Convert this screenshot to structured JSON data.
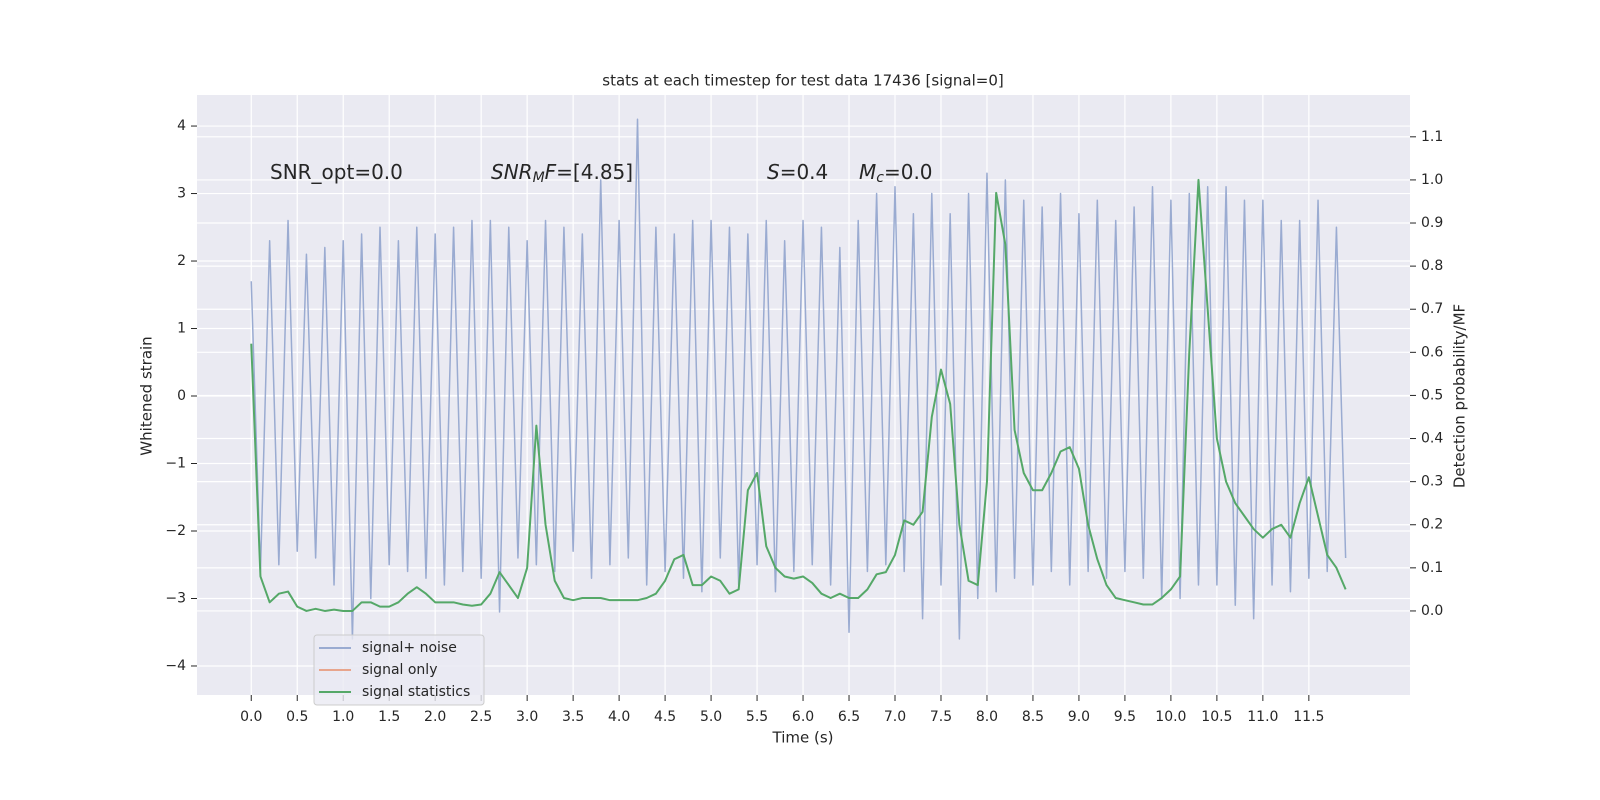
{
  "chart_data": {
    "type": "line",
    "title": "stats at each timestep for test data 17436 [signal=0]",
    "xlabel": "Time (s)",
    "ylabel": "Whitened strain",
    "y2label": "Detection probability/MF",
    "annotations": [
      {
        "parts": [
          {
            "text": "SNR_opt=0.0",
            "style": "normal"
          }
        ]
      },
      {
        "parts": [
          {
            "text": "SNR",
            "style": "italic"
          },
          {
            "text": "M",
            "style": "sub"
          },
          {
            "text": "F",
            "style": "italic"
          },
          {
            "text": "=[4.85]",
            "style": "normal"
          }
        ]
      },
      {
        "parts": [
          {
            "text": "S",
            "style": "italic"
          },
          {
            "text": "=0.4",
            "style": "normal"
          }
        ]
      },
      {
        "parts": [
          {
            "text": "M",
            "style": "italic"
          },
          {
            "text": "c",
            "style": "sub"
          },
          {
            "text": "=0.0",
            "style": "normal"
          }
        ]
      }
    ],
    "x": [
      0,
      0.1,
      0.2,
      0.3,
      0.4,
      0.5,
      0.6,
      0.7,
      0.8,
      0.9,
      1,
      1.1,
      1.2,
      1.3,
      1.4,
      1.5,
      1.6,
      1.7,
      1.8,
      1.9,
      2,
      2.1,
      2.2,
      2.3,
      2.4,
      2.5,
      2.6,
      2.7,
      2.8,
      2.9,
      3,
      3.1,
      3.2,
      3.3,
      3.4,
      3.5,
      3.6,
      3.7,
      3.8,
      3.9,
      4,
      4.1,
      4.2,
      4.3,
      4.4,
      4.5,
      4.6,
      4.7,
      4.8,
      4.9,
      5,
      5.1,
      5.2,
      5.3,
      5.4,
      5.5,
      5.6,
      5.7,
      5.8,
      5.9,
      6,
      6.1,
      6.2,
      6.3,
      6.4,
      6.5,
      6.6,
      6.7,
      6.8,
      6.9,
      7,
      7.1,
      7.2,
      7.3,
      7.4,
      7.5,
      7.6,
      7.7,
      7.8,
      7.9,
      8,
      8.1,
      8.2,
      8.3,
      8.4,
      8.5,
      8.6,
      8.7,
      8.8,
      8.9,
      9,
      9.1,
      9.2,
      9.3,
      9.4,
      9.5,
      9.6,
      9.7,
      9.8,
      9.9,
      10,
      10.1,
      10.2,
      10.3,
      10.4,
      10.5,
      10.6,
      10.7,
      10.8,
      10.9,
      11,
      11.1,
      11.2,
      11.3,
      11.4,
      11.5,
      11.6,
      11.7,
      11.8,
      11.9
    ],
    "series": [
      {
        "name": "signal+ noise",
        "color": "#9aabd1",
        "axis": "y",
        "values": [
          1.7,
          -2.6,
          2.3,
          -2.5,
          2.6,
          -2.3,
          2.1,
          -2.4,
          2.2,
          -2.8,
          2.3,
          -3.6,
          2.4,
          -3.0,
          2.5,
          -2.5,
          2.3,
          -2.6,
          2.5,
          -2.7,
          2.4,
          -2.8,
          2.5,
          -2.6,
          2.6,
          -2.7,
          2.6,
          -3.2,
          2.5,
          -2.4,
          2.3,
          -2.5,
          2.6,
          -2.6,
          2.5,
          -2.3,
          2.4,
          -2.7,
          3.2,
          -2.5,
          2.6,
          -2.4,
          4.1,
          -2.8,
          2.5,
          -2.6,
          2.4,
          -2.7,
          2.6,
          -2.9,
          2.6,
          -2.4,
          2.5,
          -2.8,
          2.4,
          -2.5,
          2.6,
          -2.9,
          2.3,
          -2.6,
          2.6,
          -2.5,
          2.5,
          -2.8,
          2.2,
          -3.5,
          2.6,
          -2.6,
          3.0,
          -2.5,
          3.1,
          -2.6,
          2.7,
          -3.3,
          3.0,
          -2.8,
          2.7,
          -3.6,
          3.0,
          -3.0,
          3.3,
          -2.9,
          3.2,
          -2.7,
          2.9,
          -2.8,
          2.8,
          -2.6,
          3.0,
          -2.8,
          2.7,
          -2.6,
          2.9,
          -2.7,
          2.6,
          -2.6,
          2.8,
          -2.7,
          3.1,
          -3.0,
          2.9,
          -3.0,
          3.0,
          -2.8,
          3.1,
          -2.8,
          3.1,
          -3.1,
          2.9,
          -3.3,
          2.9,
          -2.8,
          2.6,
          -2.9,
          2.6,
          -2.7,
          2.9,
          -2.6,
          2.5,
          -2.4
        ]
      },
      {
        "name": "signal only",
        "color": "#e8a58c",
        "axis": "y"
      },
      {
        "name": "signal statistics",
        "color": "#55a868",
        "axis": "y2",
        "values": [
          0.62,
          0.08,
          0.02,
          0.04,
          0.045,
          0.01,
          0.0,
          0.005,
          0.0,
          0.003,
          0.0,
          0.0,
          0.02,
          0.02,
          0.01,
          0.01,
          0.02,
          0.04,
          0.055,
          0.04,
          0.02,
          0.02,
          0.02,
          0.015,
          0.012,
          0.015,
          0.04,
          0.09,
          0.06,
          0.03,
          0.1,
          0.43,
          0.2,
          0.07,
          0.03,
          0.025,
          0.03,
          0.03,
          0.03,
          0.025,
          0.025,
          0.025,
          0.025,
          0.03,
          0.04,
          0.07,
          0.12,
          0.13,
          0.06,
          0.06,
          0.08,
          0.07,
          0.04,
          0.05,
          0.28,
          0.32,
          0.15,
          0.1,
          0.08,
          0.075,
          0.08,
          0.065,
          0.04,
          0.03,
          0.04,
          0.03,
          0.03,
          0.05,
          0.085,
          0.09,
          0.13,
          0.21,
          0.2,
          0.23,
          0.45,
          0.56,
          0.48,
          0.2,
          0.07,
          0.06,
          0.3,
          0.97,
          0.85,
          0.42,
          0.32,
          0.28,
          0.28,
          0.32,
          0.37,
          0.38,
          0.33,
          0.2,
          0.12,
          0.06,
          0.03,
          0.025,
          0.02,
          0.015,
          0.015,
          0.03,
          0.05,
          0.08,
          0.6,
          1.0,
          0.7,
          0.4,
          0.3,
          0.25,
          0.22,
          0.19,
          0.17,
          0.19,
          0.2,
          0.17,
          0.25,
          0.31,
          0.22,
          0.13,
          0.1,
          0.05
        ]
      }
    ],
    "xlim": [
      -0.59,
      12.6
    ],
    "ylim": [
      -4.43,
      4.46
    ],
    "y2lim": [
      -0.195,
      1.197
    ],
    "xticks": [
      {
        "value": 0,
        "label": "0.0"
      },
      0.5,
      {
        "value": 1,
        "label": "1.0"
      },
      1.5,
      {
        "value": 2,
        "label": "2.0"
      },
      2.5,
      {
        "value": 3,
        "label": "3.0"
      },
      3.5,
      {
        "value": 4,
        "label": "4.0"
      },
      4.5,
      {
        "value": 5,
        "label": "5.0"
      },
      5.5,
      {
        "value": 6,
        "label": "6.0"
      },
      6.5,
      {
        "value": 7,
        "label": "7.0"
      },
      7.5,
      {
        "value": 8,
        "label": "8.0"
      },
      8.5,
      {
        "value": 9,
        "label": "9.0"
      },
      9.5,
      {
        "value": 10,
        "label": "10.0"
      },
      10.5,
      {
        "value": 11,
        "label": "11.0"
      },
      11.5
    ],
    "yticks": [
      {
        "value": -4,
        "label": "−4"
      },
      {
        "value": -3,
        "label": "−3"
      },
      {
        "value": -2,
        "label": "−2"
      },
      {
        "value": -1,
        "label": "−1"
      },
      0,
      1,
      2,
      3,
      4
    ],
    "y2ticks": [
      {
        "value": 0,
        "label": "0.0"
      },
      0.1,
      0.2,
      0.3,
      0.4,
      0.5,
      0.6,
      0.7,
      0.8,
      0.9,
      {
        "value": 1,
        "label": "1.0"
      },
      1.1
    ],
    "grid": true,
    "legend": "lower left"
  }
}
